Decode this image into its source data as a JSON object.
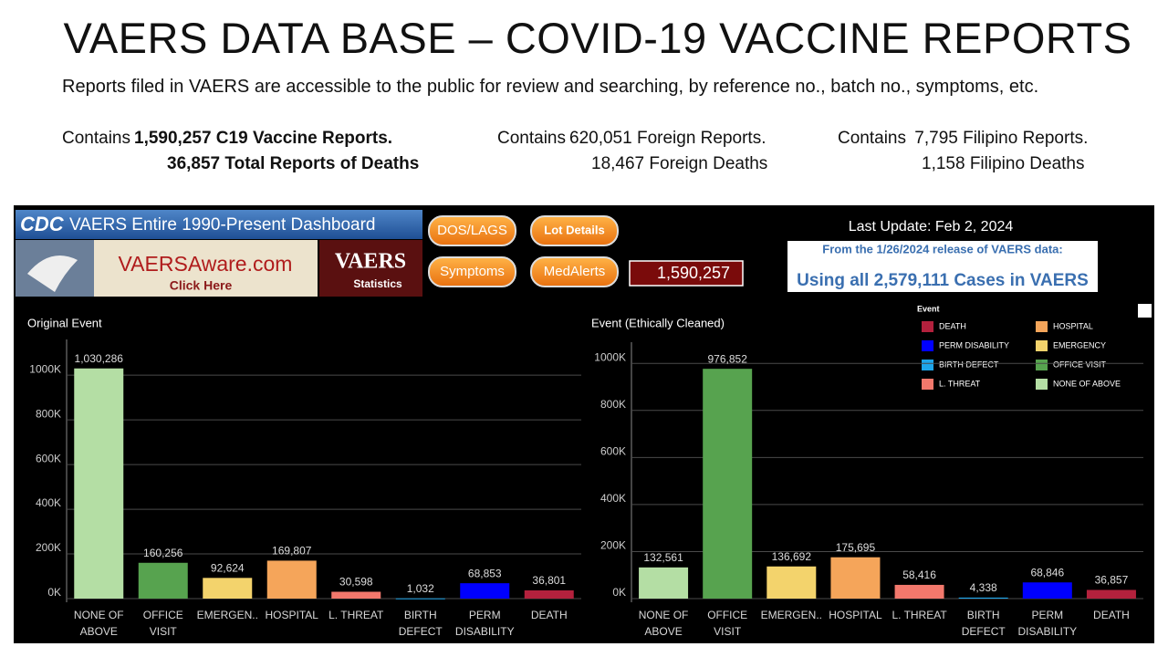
{
  "header": {
    "title": "VAERS DATA BASE – COVID-19 VACCINE REPORTS",
    "subtitle": "Reports filed in VAERS are accessible to the public for review and searching, by reference no., batch no., symptoms, etc.",
    "stats": [
      {
        "prefix": "Contains",
        "reports": "1,590,257  C19 Vaccine Reports.",
        "deaths": "36,857  Total Reports of Deaths",
        "bold": true
      },
      {
        "prefix": "Contains",
        "reports": "620,051 Foreign Reports.",
        "deaths": "18,467 Foreign Deaths",
        "bold": false
      },
      {
        "prefix": "Contains",
        "reports": " 7,795  Filipino Reports.",
        "deaths": "1,158 Filipino Deaths",
        "bold": false
      }
    ]
  },
  "dashboard": {
    "banner": "VAERS Entire 1990-Present Dashboard",
    "cdc": "CDC",
    "site": "VAERSAware.com",
    "click": "Click Here",
    "badge": "VAERS",
    "badge_sub": "Statistics",
    "buttons": [
      "DOS/LAGS",
      "Lot Details",
      "Symptoms",
      "MedAlerts"
    ],
    "count": "1,590,257",
    "last_update": "Last Update: Feb 2, 2024",
    "release": "From the 1/26/2024 release of VAERS data:",
    "cases": "Using all 2,579,111 Cases in VAERS",
    "legend": {
      "title": "Event",
      "items": [
        {
          "name": "DEATH",
          "color": "#b3213d"
        },
        {
          "name": "HOSPITAL",
          "color": "#f5a55a"
        },
        {
          "name": "PERM DISABILITY",
          "color": "#0000ff"
        },
        {
          "name": "EMERGENCY",
          "color": "#f3d36c"
        },
        {
          "name": "BIRTH DEFECT",
          "color": "#1ea5ea"
        },
        {
          "name": "OFFICE VISIT",
          "color": "#57a34f"
        },
        {
          "name": "L. THREAT",
          "color": "#f2786c"
        },
        {
          "name": "NONE OF ABOVE",
          "color": "#b4dea4"
        }
      ]
    }
  },
  "chart_data": [
    {
      "type": "bar",
      "title": "Original Event",
      "categories": [
        "NONE OF ABOVE",
        "OFFICE VISIT",
        "EMERGEN..",
        "HOSPITAL",
        "L. THREAT",
        "BIRTH DEFECT",
        "PERM DISABILITY",
        "DEATH"
      ],
      "values": [
        1030286,
        160256,
        92624,
        169807,
        30598,
        1032,
        68853,
        36801
      ],
      "value_labels": [
        "1,030,286",
        "160,256",
        "92,624",
        "169,807",
        "30,598",
        "1,032",
        "68,853",
        "36,801"
      ],
      "colors": [
        "#b4dea4",
        "#57a34f",
        "#f3d36c",
        "#f5a55a",
        "#f2786c",
        "#1ea5ea",
        "#0000ff",
        "#b3213d"
      ],
      "ylim": [
        0,
        1160000
      ],
      "yticks": [
        {
          "value": 0,
          "label": "0K"
        },
        {
          "value": 200000,
          "label": "200K"
        },
        {
          "value": 400000,
          "label": "400K"
        },
        {
          "value": 600000,
          "label": "600K"
        },
        {
          "value": 800000,
          "label": "800K"
        },
        {
          "value": 1000000,
          "label": "1000K"
        }
      ],
      "grid": true
    },
    {
      "type": "bar",
      "title": "Event (Ethically Cleaned)",
      "categories": [
        "NONE OF ABOVE",
        "OFFICE VISIT",
        "EMERGEN..",
        "HOSPITAL",
        "L. THREAT",
        "BIRTH DEFECT",
        "PERM DISABILITY",
        "DEATH"
      ],
      "values": [
        132561,
        976852,
        136692,
        175695,
        58416,
        4338,
        68846,
        36857
      ],
      "value_labels": [
        "132,561",
        "976,852",
        "136,692",
        "175,695",
        "58,416",
        "4,338",
        "68,846",
        "36,857"
      ],
      "colors": [
        "#b4dea4",
        "#57a34f",
        "#f3d36c",
        "#f5a55a",
        "#f2786c",
        "#1ea5ea",
        "#0000ff",
        "#b3213d"
      ],
      "ylim": [
        0,
        1090000
      ],
      "yticks": [
        {
          "value": 0,
          "label": "0K"
        },
        {
          "value": 200000,
          "label": "200K"
        },
        {
          "value": 400000,
          "label": "400K"
        },
        {
          "value": 600000,
          "label": "600K"
        },
        {
          "value": 800000,
          "label": "800K"
        },
        {
          "value": 1000000,
          "label": "1000K"
        }
      ],
      "grid": true
    }
  ]
}
